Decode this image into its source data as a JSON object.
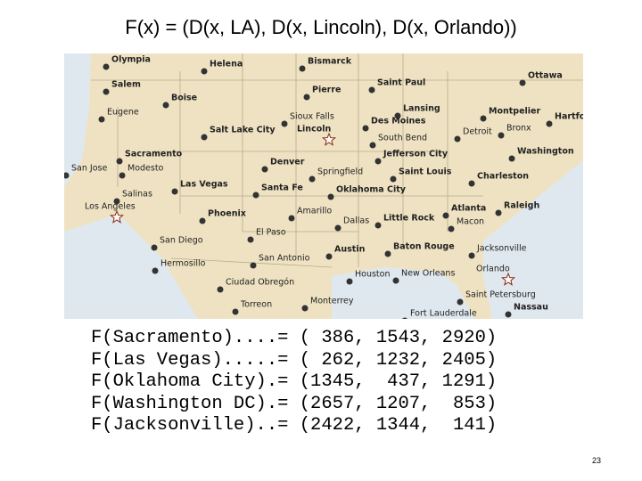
{
  "title": "F(x) = (D(x, LA), D(x, Lincoln), D(x, Orlando))",
  "map": {
    "labels": [
      "Olympia",
      "Helena",
      "Bismarck",
      "Ottawa",
      "Salem",
      "Saint Paul",
      "Pierre",
      "Boise",
      "Eugene",
      "Lansing",
      "Montpelier",
      "Hartfo",
      "Sioux Falls",
      "Des Moines",
      "Salt Lake City",
      "Lincoln",
      "Detroit",
      "Bronx",
      "South Bend",
      "Washington",
      "Sacramento",
      "Jefferson City",
      "Denver",
      "San Jose",
      "Modesto",
      "Springfield",
      "Saint Louis",
      "Charleston",
      "Las Vegas",
      "Santa Fe",
      "Oklahoma City",
      "Salinas",
      "Los Angeles",
      "Raleigh",
      "Atlanta",
      "Phoenix",
      "Amarillo",
      "Dallas",
      "Little Rock",
      "Macon",
      "El Paso",
      "San Diego",
      "Austin",
      "Baton Rouge",
      "Jacksonville",
      "San Antonio",
      "Hermosillo",
      "Houston",
      "New Orleans",
      "Orlando",
      "Ciudad Obregón",
      "Saint Petersburg",
      "Monterrey",
      "Torreon",
      "Nassau",
      "Fort Lauderdale"
    ]
  },
  "table": {
    "rows": [
      "F(Sacramento)....= ( 386, 1543, 2920)",
      "F(Las Vegas).....= ( 262, 1232, 2405)",
      "F(Oklahoma City).= (1345,  437, 1291)",
      "F(Washington DC).= (2657, 1207,  853)",
      "F(Jacksonville)..= (2422, 1344,  141)"
    ]
  },
  "page_number": "23"
}
